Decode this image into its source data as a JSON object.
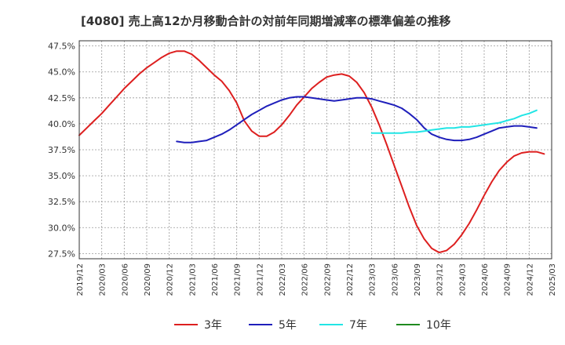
{
  "chart_data": {
    "type": "line",
    "title": "[4080]  売上高12か月移動合計の対前年同期増減率の標準偏差の推移",
    "xlabel": "",
    "ylabel": "",
    "ylim": [
      27.0,
      48.0
    ],
    "yticks": [
      27.5,
      30.0,
      32.5,
      35.0,
      37.5,
      40.0,
      42.5,
      45.0,
      47.5
    ],
    "ytick_labels": [
      "27.5%",
      "30.0%",
      "32.5%",
      "35.0%",
      "37.5%",
      "40.0%",
      "42.5%",
      "45.0%",
      "47.5%"
    ],
    "x_range": [
      "2019/12",
      "2025/03"
    ],
    "xtick_labels": [
      "2019/12",
      "2020/03",
      "2020/06",
      "2020/09",
      "2020/12",
      "2021/03",
      "2021/06",
      "2021/09",
      "2021/12",
      "2022/03",
      "2022/06",
      "2022/09",
      "2022/12",
      "2023/03",
      "2023/06",
      "2023/09",
      "2023/12",
      "2024/03",
      "2024/06",
      "2024/09",
      "2024/12",
      "2025/03"
    ],
    "grid": true,
    "legend_position": "bottom",
    "series": [
      {
        "name": "3年",
        "color": "#dd1f1f",
        "points": [
          [
            "2019/12",
            38.9
          ],
          [
            "2020/01",
            39.6
          ],
          [
            "2020/02",
            40.3
          ],
          [
            "2020/03",
            41.0
          ],
          [
            "2020/04",
            41.8
          ],
          [
            "2020/05",
            42.6
          ],
          [
            "2020/06",
            43.4
          ],
          [
            "2020/07",
            44.1
          ],
          [
            "2020/08",
            44.8
          ],
          [
            "2020/09",
            45.4
          ],
          [
            "2020/10",
            45.9
          ],
          [
            "2020/11",
            46.4
          ],
          [
            "2020/12",
            46.8
          ],
          [
            "2021/01",
            47.0
          ],
          [
            "2021/02",
            47.0
          ],
          [
            "2021/03",
            46.7
          ],
          [
            "2021/04",
            46.1
          ],
          [
            "2021/05",
            45.4
          ],
          [
            "2021/06",
            44.7
          ],
          [
            "2021/07",
            44.1
          ],
          [
            "2021/08",
            43.2
          ],
          [
            "2021/09",
            42.0
          ],
          [
            "2021/10",
            40.3
          ],
          [
            "2021/11",
            39.3
          ],
          [
            "2021/12",
            38.8
          ],
          [
            "2022/01",
            38.8
          ],
          [
            "2022/02",
            39.2
          ],
          [
            "2022/03",
            39.9
          ],
          [
            "2022/04",
            40.8
          ],
          [
            "2022/05",
            41.8
          ],
          [
            "2022/06",
            42.6
          ],
          [
            "2022/07",
            43.4
          ],
          [
            "2022/08",
            44.0
          ],
          [
            "2022/09",
            44.5
          ],
          [
            "2022/10",
            44.7
          ],
          [
            "2022/11",
            44.8
          ],
          [
            "2022/12",
            44.6
          ],
          [
            "2023/01",
            44.0
          ],
          [
            "2023/02",
            43.0
          ],
          [
            "2023/03",
            41.6
          ],
          [
            "2023/04",
            39.9
          ],
          [
            "2023/05",
            38.0
          ],
          [
            "2023/06",
            36.0
          ],
          [
            "2023/07",
            34.0
          ],
          [
            "2023/08",
            32.0
          ],
          [
            "2023/09",
            30.2
          ],
          [
            "2023/10",
            28.9
          ],
          [
            "2023/11",
            28.0
          ],
          [
            "2023/12",
            27.6
          ],
          [
            "2024/01",
            27.8
          ],
          [
            "2024/02",
            28.4
          ],
          [
            "2024/03",
            29.3
          ],
          [
            "2024/04",
            30.4
          ],
          [
            "2024/05",
            31.7
          ],
          [
            "2024/06",
            33.1
          ],
          [
            "2024/07",
            34.4
          ],
          [
            "2024/08",
            35.5
          ],
          [
            "2024/09",
            36.3
          ],
          [
            "2024/10",
            36.9
          ],
          [
            "2024/11",
            37.2
          ],
          [
            "2024/12",
            37.3
          ],
          [
            "2025/01",
            37.3
          ],
          [
            "2025/02",
            37.1
          ]
        ]
      },
      {
        "name": "5年",
        "color": "#1f1fbb",
        "points": [
          [
            "2021/01",
            38.3
          ],
          [
            "2021/02",
            38.2
          ],
          [
            "2021/03",
            38.2
          ],
          [
            "2021/04",
            38.3
          ],
          [
            "2021/05",
            38.4
          ],
          [
            "2021/06",
            38.7
          ],
          [
            "2021/07",
            39.0
          ],
          [
            "2021/08",
            39.4
          ],
          [
            "2021/09",
            39.9
          ],
          [
            "2021/10",
            40.4
          ],
          [
            "2021/11",
            40.9
          ],
          [
            "2021/12",
            41.3
          ],
          [
            "2022/01",
            41.7
          ],
          [
            "2022/02",
            42.0
          ],
          [
            "2022/03",
            42.3
          ],
          [
            "2022/04",
            42.5
          ],
          [
            "2022/05",
            42.6
          ],
          [
            "2022/06",
            42.6
          ],
          [
            "2022/07",
            42.5
          ],
          [
            "2022/08",
            42.4
          ],
          [
            "2022/09",
            42.3
          ],
          [
            "2022/10",
            42.2
          ],
          [
            "2022/11",
            42.3
          ],
          [
            "2022/12",
            42.4
          ],
          [
            "2023/01",
            42.5
          ],
          [
            "2023/02",
            42.5
          ],
          [
            "2023/03",
            42.4
          ],
          [
            "2023/04",
            42.2
          ],
          [
            "2023/05",
            42.0
          ],
          [
            "2023/06",
            41.8
          ],
          [
            "2023/07",
            41.5
          ],
          [
            "2023/08",
            41.0
          ],
          [
            "2023/09",
            40.4
          ],
          [
            "2023/10",
            39.6
          ],
          [
            "2023/11",
            39.0
          ],
          [
            "2023/12",
            38.7
          ],
          [
            "2024/01",
            38.5
          ],
          [
            "2024/02",
            38.4
          ],
          [
            "2024/03",
            38.4
          ],
          [
            "2024/04",
            38.5
          ],
          [
            "2024/05",
            38.7
          ],
          [
            "2024/06",
            39.0
          ],
          [
            "2024/07",
            39.3
          ],
          [
            "2024/08",
            39.6
          ],
          [
            "2024/09",
            39.7
          ],
          [
            "2024/10",
            39.8
          ],
          [
            "2024/11",
            39.8
          ],
          [
            "2024/12",
            39.7
          ],
          [
            "2025/01",
            39.6
          ]
        ]
      },
      {
        "name": "7年",
        "color": "#22e5e5",
        "points": [
          [
            "2023/03",
            39.1
          ],
          [
            "2023/04",
            39.1
          ],
          [
            "2023/05",
            39.1
          ],
          [
            "2023/06",
            39.1
          ],
          [
            "2023/07",
            39.1
          ],
          [
            "2023/08",
            39.2
          ],
          [
            "2023/09",
            39.2
          ],
          [
            "2023/10",
            39.3
          ],
          [
            "2023/11",
            39.4
          ],
          [
            "2023/12",
            39.5
          ],
          [
            "2024/01",
            39.6
          ],
          [
            "2024/02",
            39.6
          ],
          [
            "2024/03",
            39.7
          ],
          [
            "2024/04",
            39.7
          ],
          [
            "2024/05",
            39.8
          ],
          [
            "2024/06",
            39.9
          ],
          [
            "2024/07",
            40.0
          ],
          [
            "2024/08",
            40.1
          ],
          [
            "2024/09",
            40.3
          ],
          [
            "2024/10",
            40.5
          ],
          [
            "2024/11",
            40.8
          ],
          [
            "2024/12",
            41.0
          ],
          [
            "2025/01",
            41.3
          ]
        ]
      },
      {
        "name": "10年",
        "color": "#1f8a1f",
        "points": []
      }
    ]
  }
}
